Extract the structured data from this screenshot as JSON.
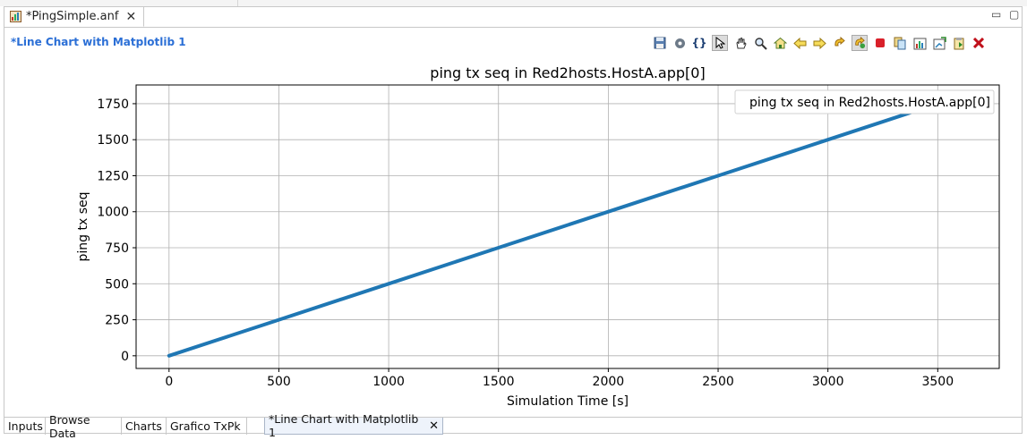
{
  "editor": {
    "file_tab": "*PingSimple.anf",
    "close_glyph": "✕",
    "minimize_glyph": "▭",
    "maximize_glyph": "▢"
  },
  "chart_heading": "*Line Chart with Matplotlib 1",
  "toolbar_icons": [
    "save-icon",
    "settings-icon",
    "braces-icon",
    "pointer-icon",
    "pan-hand-icon",
    "zoom-icon",
    "home-icon",
    "back-icon",
    "forward-icon",
    "refresh-icon",
    "auto-refresh-icon",
    "stop-icon",
    "copy-icon",
    "export-data-icon",
    "export-image-icon",
    "clipboard-icon",
    "close-red-icon"
  ],
  "bottom_tabs": [
    {
      "label": "Inputs"
    },
    {
      "label": "Browse Data"
    },
    {
      "label": "Charts"
    },
    {
      "label": "Grafico TxPk"
    },
    {
      "label": "*Line Chart with Matplotlib 1",
      "active": true
    }
  ],
  "colors": {
    "series": "#1f77b4",
    "heading": "#2b6fd6"
  },
  "chart_data": {
    "type": "line",
    "title": "ping tx seq in Red2hosts.HostA.app[0]",
    "xlabel": "Simulation Time [s]",
    "ylabel": "ping tx seq",
    "xlim": [
      -150,
      3780
    ],
    "ylim": [
      -88,
      1880
    ],
    "xticks": [
      0,
      500,
      1000,
      1500,
      2000,
      2500,
      3000,
      3500
    ],
    "yticks": [
      0,
      250,
      500,
      750,
      1000,
      1250,
      1500,
      1750
    ],
    "grid": true,
    "legend_position": "top-right",
    "series": [
      {
        "name": "ping tx seq in Red2hosts.HostA.app[0]",
        "x": [
          0,
          500,
          1000,
          1500,
          2000,
          2500,
          3000,
          3500,
          3650
        ],
        "y": [
          0,
          250,
          500,
          750,
          1000,
          1250,
          1500,
          1750,
          1825
        ]
      }
    ]
  }
}
